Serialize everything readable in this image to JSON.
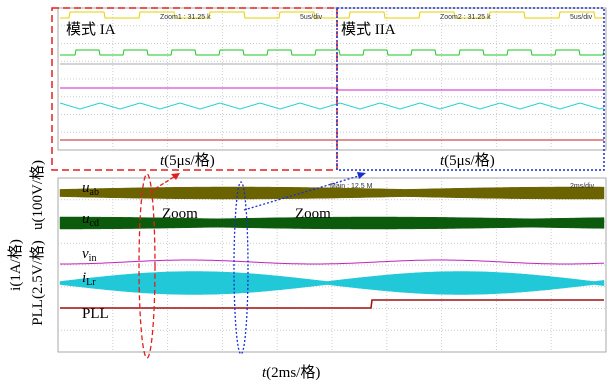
{
  "zoom_panel": {
    "left": {
      "mode": "模式 IA",
      "zoom": "Zoom1 : 31.25 k",
      "timebase": "5us/div",
      "axis_label": {
        "main": "t",
        "rest": "(5μs/格)"
      }
    },
    "right": {
      "mode": "模式 IIA",
      "zoom": "Zoom2 : 31.25 k",
      "timebase": "5us/div",
      "axis_label": {
        "main": "t",
        "rest": "(5μs/格)"
      }
    }
  },
  "main_panel": {
    "header": "Main : 12.5 M",
    "timebase": "2ms/div",
    "traces": [
      {
        "main": "u",
        "sub": "ab"
      },
      {
        "main": "u",
        "sub": "cd"
      },
      {
        "main": "v",
        "sub": "in"
      },
      {
        "main": "i",
        "sub": "Lr"
      },
      {
        "main": "PLL",
        "sub": ""
      }
    ],
    "zoom_marks": [
      "Zoom",
      "Zoom"
    ],
    "y_label": {
      "line1": "i(1A/格)",
      "line2": "PLL(2.5V/格)",
      "line3": "u(100V/格)"
    },
    "x_label": {
      "main": "t",
      "rest": "(2ms/格)"
    }
  }
}
